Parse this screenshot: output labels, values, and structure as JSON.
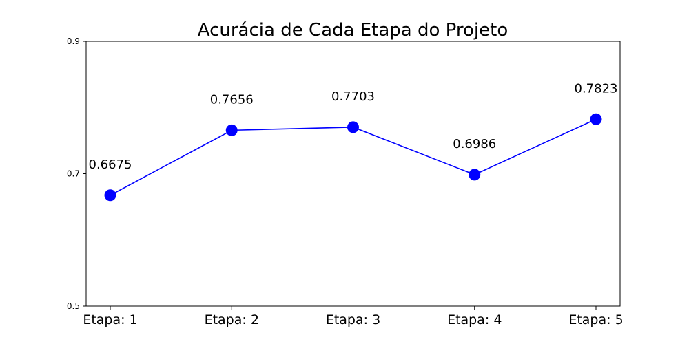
{
  "chart_data": {
    "type": "line",
    "title": "Acurácia de Cada Etapa do Projeto",
    "xlabel": "",
    "ylabel": "",
    "categories": [
      "Etapa: 1",
      "Etapa: 2",
      "Etapa: 3",
      "Etapa: 4",
      "Etapa: 5"
    ],
    "series": [
      {
        "values": [
          0.6675,
          0.7656,
          0.7703,
          0.6986,
          0.7823
        ],
        "data_labels": [
          "0.6675",
          "0.7656",
          "0.7703",
          "0.6986",
          "0.7823"
        ],
        "color": "#0000ff"
      }
    ],
    "ylim": [
      0.5,
      0.9
    ],
    "y_ticks": [
      0.5,
      0.7,
      0.9
    ],
    "y_tick_labels": [
      "0.5",
      "0.7",
      "0.9"
    ],
    "grid": false,
    "legend": "none"
  }
}
